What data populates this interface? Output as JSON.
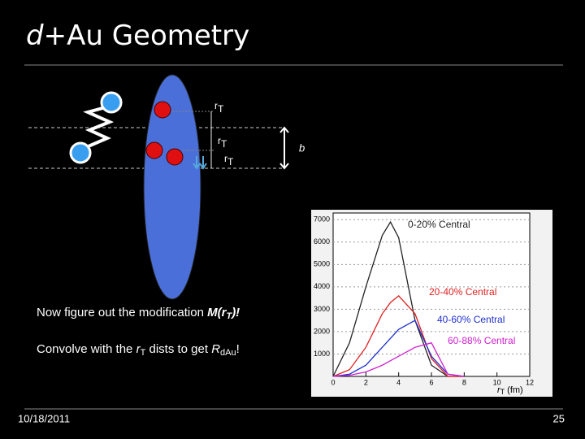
{
  "header": {
    "title_italic": "d",
    "title_rest": "+Au Geometry"
  },
  "diagram": {
    "rt_labels": [
      {
        "r": "r",
        "t": "T"
      },
      {
        "r": "r",
        "t": "T"
      },
      {
        "r": "r",
        "t": "T"
      }
    ],
    "b_label": "b"
  },
  "body": {
    "line1": {
      "text": "Now figure out the modification ",
      "m": "M(r",
      "sub": "T",
      "end": ")!"
    },
    "line2": {
      "text": "Convolve with the ",
      "r": "r",
      "sub": "T",
      "mid": " dists to get ",
      "R": "R",
      "dau": "dAu",
      "end": "!"
    }
  },
  "chart_data": {
    "type": "line",
    "x": [
      0,
      1,
      2,
      3,
      3.5,
      4,
      5,
      6,
      7,
      8
    ],
    "series": [
      {
        "name": "0-20% Central",
        "color": "#222222",
        "values": [
          0,
          1500,
          4000,
          6300,
          6900,
          6200,
          2500,
          500,
          0,
          0
        ]
      },
      {
        "name": "20-40% Central",
        "color": "#e02020",
        "values": [
          0,
          300,
          1300,
          2800,
          3300,
          3600,
          2800,
          800,
          0,
          0
        ]
      },
      {
        "name": "40-60% Central",
        "color": "#2030d0",
        "values": [
          0,
          100,
          500,
          1300,
          1700,
          2100,
          2500,
          900,
          100,
          0
        ]
      },
      {
        "name": "60-88% Central",
        "color": "#d020d0",
        "values": [
          0,
          50,
          200,
          500,
          700,
          900,
          1300,
          1500,
          100,
          0
        ]
      }
    ],
    "xlim": [
      0,
      12
    ],
    "ylim": [
      0,
      7300
    ],
    "xticks": [
      0,
      2,
      4,
      6,
      8,
      10,
      12
    ],
    "yticks": [
      1000,
      2000,
      3000,
      4000,
      5000,
      6000,
      7000
    ],
    "xlabel": {
      "r": "r",
      "sub": "T",
      "unit": "(fm)"
    }
  },
  "footer": {
    "date": "10/18/2011",
    "page": "25"
  }
}
